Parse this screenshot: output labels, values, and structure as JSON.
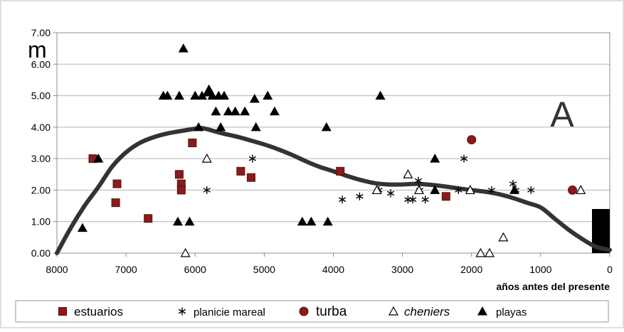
{
  "chart_data": {
    "type": "scatter",
    "title": "",
    "panel_label": "A",
    "ylabel": "m",
    "xlabel": "años antes del presente",
    "x_reversed": true,
    "xlim": [
      8000,
      0
    ],
    "ylim": [
      0,
      7
    ],
    "xticks": [
      "8000",
      "7000",
      "6000",
      "5000",
      "4000",
      "3000",
      "2000",
      "1000",
      "0"
    ],
    "yticks": [
      "0.00",
      "1.00",
      "2.00",
      "3.00",
      "4.00",
      "5.00",
      "6.00",
      "7.00"
    ],
    "grid": "horizontal",
    "legend_position": "bottom",
    "colors": {
      "estuarios": "#8b1a1a",
      "turba": "#8b1a1a",
      "markers": "#000000",
      "curve": "#333333"
    },
    "series": [
      {
        "name": "estuarios",
        "marker": "square",
        "points": [
          [
            7480,
            3.0
          ],
          [
            7130,
            2.2
          ],
          [
            7150,
            1.6
          ],
          [
            6680,
            1.1
          ],
          [
            6040,
            3.5
          ],
          [
            6230,
            2.5
          ],
          [
            6200,
            2.2
          ],
          [
            6200,
            2.0
          ],
          [
            5340,
            2.6
          ],
          [
            5190,
            2.4
          ],
          [
            3900,
            2.6
          ],
          [
            2370,
            1.8
          ]
        ]
      },
      {
        "name": "planicie mareal",
        "marker": "asterisk",
        "points": [
          [
            5830,
            2.0
          ],
          [
            5170,
            3.0
          ],
          [
            3870,
            1.7
          ],
          [
            3620,
            1.8
          ],
          [
            3340,
            2.0
          ],
          [
            3170,
            1.9
          ],
          [
            2920,
            1.7
          ],
          [
            2850,
            1.7
          ],
          [
            2770,
            2.3
          ],
          [
            2750,
            2.0
          ],
          [
            2670,
            1.7
          ],
          [
            2190,
            2.0
          ],
          [
            2110,
            3.0
          ],
          [
            1710,
            2.0
          ],
          [
            1400,
            2.2
          ],
          [
            1360,
            2.0
          ],
          [
            1140,
            2.0
          ]
        ]
      },
      {
        "name": "turba",
        "marker": "circle",
        "points": [
          [
            2000,
            3.6
          ],
          [
            540,
            2.0
          ]
        ]
      },
      {
        "name": "cheniers",
        "marker": "open-triangle",
        "points": [
          [
            6140,
            0.0
          ],
          [
            5830,
            3.0
          ],
          [
            3370,
            2.0
          ],
          [
            2920,
            2.5
          ],
          [
            2760,
            2.0
          ],
          [
            2020,
            2.0
          ],
          [
            1870,
            0.0
          ],
          [
            1740,
            0.0
          ],
          [
            1540,
            0.5
          ],
          [
            420,
            2.0
          ]
        ]
      },
      {
        "name": "playas",
        "marker": "triangle",
        "points": [
          [
            7630,
            0.8
          ],
          [
            7400,
            3.0
          ],
          [
            6460,
            5.0
          ],
          [
            6400,
            5.0
          ],
          [
            6230,
            5.0
          ],
          [
            6170,
            6.5
          ],
          [
            6250,
            1.0
          ],
          [
            6080,
            1.0
          ],
          [
            6000,
            5.0
          ],
          [
            5950,
            4.0
          ],
          [
            5900,
            5.0
          ],
          [
            5820,
            5.1
          ],
          [
            5800,
            5.2
          ],
          [
            5750,
            5.0
          ],
          [
            5700,
            4.5
          ],
          [
            5660,
            5.0
          ],
          [
            5630,
            4.0
          ],
          [
            5580,
            5.0
          ],
          [
            5520,
            4.5
          ],
          [
            5420,
            4.5
          ],
          [
            5280,
            4.5
          ],
          [
            5140,
            4.9
          ],
          [
            5120,
            4.0
          ],
          [
            4950,
            5.0
          ],
          [
            4850,
            4.5
          ],
          [
            4450,
            1.0
          ],
          [
            4320,
            1.0
          ],
          [
            4100,
            4.0
          ],
          [
            4080,
            1.0
          ],
          [
            3320,
            5.0
          ],
          [
            2530,
            3.0
          ],
          [
            2530,
            2.0
          ],
          [
            1380,
            2.0
          ]
        ]
      }
    ],
    "curve": {
      "x": [
        8000,
        7800,
        7600,
        7400,
        7200,
        7000,
        6800,
        6600,
        6400,
        6200,
        6000,
        5900,
        5800,
        5600,
        5400,
        5200,
        5000,
        4800,
        4600,
        4400,
        4200,
        4000,
        3800,
        3600,
        3400,
        3200,
        3000,
        2800,
        2600,
        2400,
        2200,
        2000,
        1800,
        1600,
        1400,
        1200,
        1000,
        800,
        600,
        400,
        200,
        0
      ],
      "y": [
        0.0,
        0.8,
        1.5,
        2.1,
        2.75,
        3.2,
        3.5,
        3.68,
        3.8,
        3.88,
        3.95,
        3.97,
        3.92,
        3.8,
        3.7,
        3.58,
        3.45,
        3.3,
        3.12,
        2.92,
        2.74,
        2.6,
        2.45,
        2.32,
        2.22,
        2.18,
        2.18,
        2.2,
        2.17,
        2.12,
        2.06,
        2.0,
        1.95,
        1.87,
        1.75,
        1.6,
        1.45,
        1.1,
        0.75,
        0.45,
        0.2,
        0.1
      ]
    },
    "bar": {
      "x": 0,
      "y_range": [
        0,
        1.4
      ]
    }
  }
}
